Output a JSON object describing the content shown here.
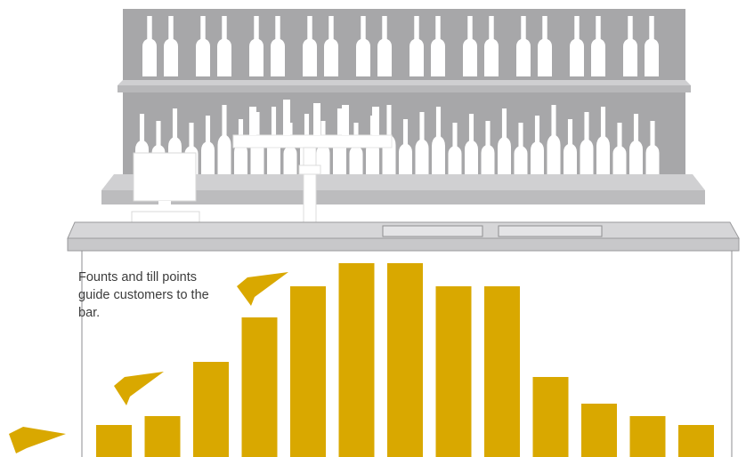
{
  "caption": "Founts and till points guide customers to the bar.",
  "colors": {
    "back_panel": "#a7a7a9",
    "shelf": "#c6c6c8",
    "counter": "#d2d2d4",
    "counter_edge": "#9a9a9c",
    "bottle": "#ffffff",
    "bar_fill": "#d9a800",
    "arrow_fill": "#d9a800",
    "text": "#3c3c3c"
  },
  "icons": [
    "bottle-icon",
    "till-icon",
    "beer-fount-icon",
    "arrow-icon"
  ],
  "chart_data": {
    "type": "bar",
    "values": [
      36,
      46,
      107,
      157,
      192,
      218,
      218,
      192,
      192,
      90,
      60,
      46,
      36
    ],
    "ylim": [
      0,
      230
    ],
    "grid": false,
    "legend": "none"
  }
}
